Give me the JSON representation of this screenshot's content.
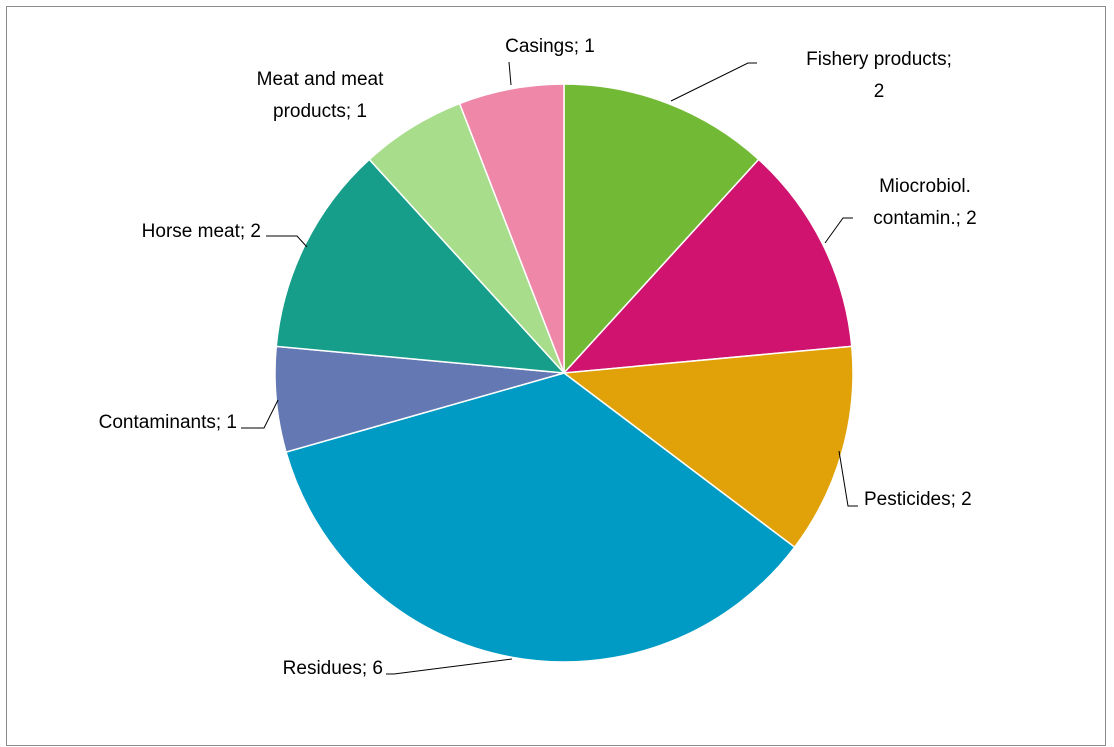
{
  "chart_data": {
    "type": "pie",
    "title": "",
    "start_angle_deg": 0,
    "direction": "clockwise",
    "slices": [
      {
        "label": "Fishery products",
        "value": 2,
        "color": "#72BA36",
        "text": [
          "Fishery products;",
          "2"
        ]
      },
      {
        "label": "Miocrobiol. contamin.",
        "value": 2,
        "color": "#CF136E",
        "text": [
          "Miocrobiol.",
          "contamin.; 2"
        ]
      },
      {
        "label": "Pesticides",
        "value": 2,
        "color": "#E0A208",
        "text": [
          "Pesticides; 2"
        ]
      },
      {
        "label": "Residues",
        "value": 6,
        "color": "#009BC4",
        "text": [
          "Residues; 6"
        ]
      },
      {
        "label": "Contaminants",
        "value": 1,
        "color": "#6479B3",
        "text": [
          "Contaminants; 1"
        ]
      },
      {
        "label": "Horse meat",
        "value": 2,
        "color": "#179E8A",
        "text": [
          "Horse meat; 2"
        ]
      },
      {
        "label": "Meat and meat products",
        "value": 1,
        "color": "#A8DD8C",
        "text": [
          "Meat and meat",
          "products; 1"
        ]
      },
      {
        "label": "Casings",
        "value": 1,
        "color": "#EF88A8",
        "text": [
          "Casings; 1"
        ]
      }
    ]
  }
}
